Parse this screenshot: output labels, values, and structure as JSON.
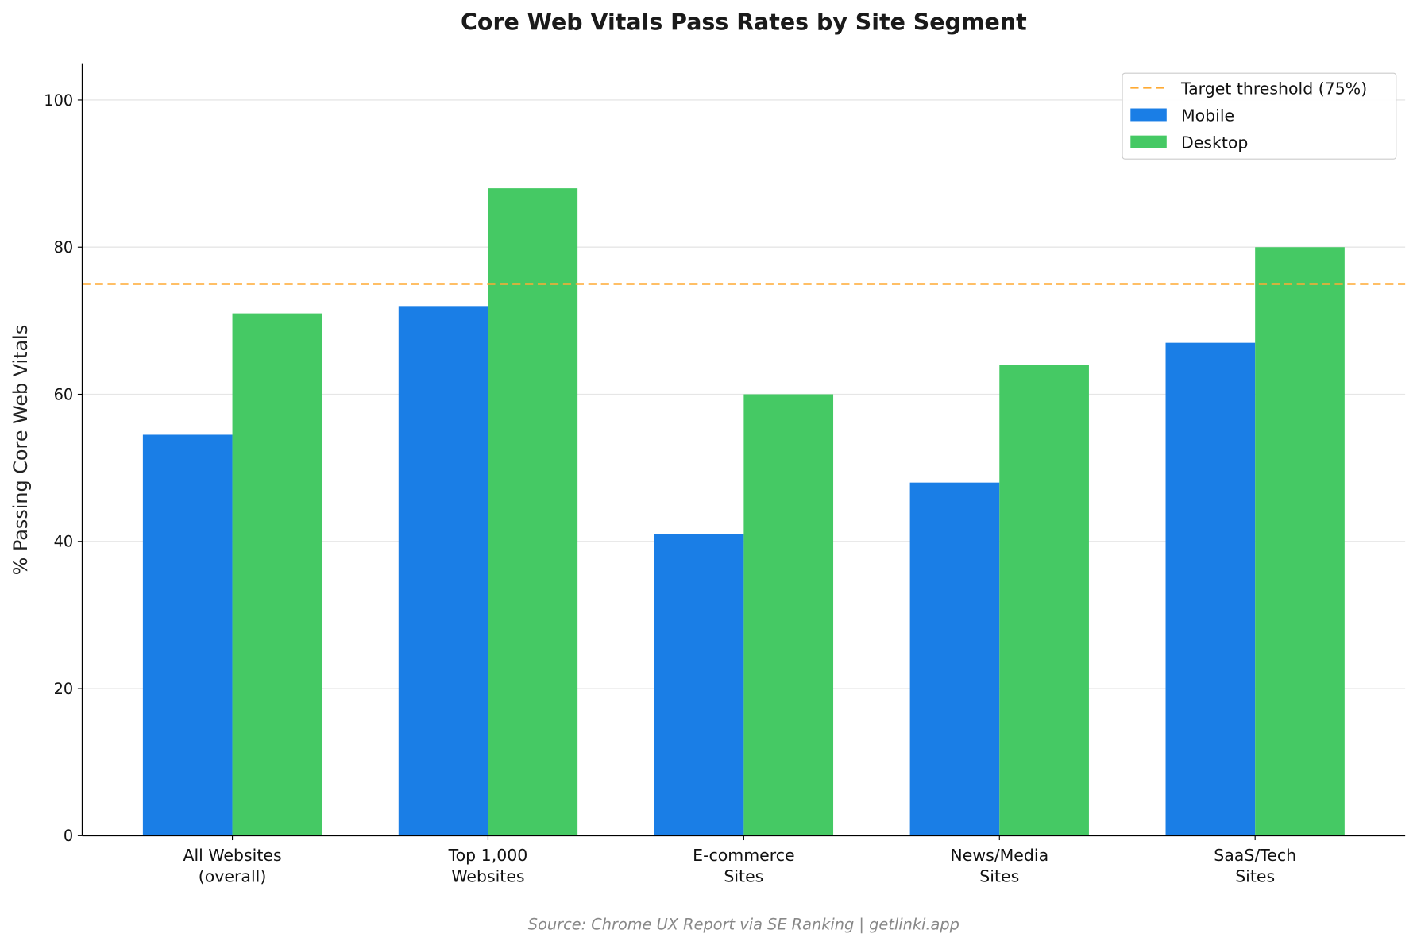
{
  "chart_data": {
    "type": "bar",
    "title": "Core Web Vitals Pass Rates by Site Segment",
    "xlabel": "",
    "ylabel": "% Passing Core Web Vitals",
    "categories": [
      [
        "All Websites",
        "(overall)"
      ],
      [
        "Top 1,000",
        "Websites"
      ],
      [
        "E-commerce",
        "Sites"
      ],
      [
        "News/Media",
        "Sites"
      ],
      [
        "SaaS/Tech",
        "Sites"
      ]
    ],
    "series": [
      {
        "name": "Mobile",
        "color": "#1a7ee6",
        "values": [
          54.5,
          72,
          41,
          48,
          67
        ]
      },
      {
        "name": "Desktop",
        "color": "#45c964",
        "values": [
          71,
          88,
          60,
          64,
          80
        ]
      }
    ],
    "reference_line": {
      "name": "Target threshold (75%)",
      "value": 75,
      "color": "#ffaa33",
      "style": "dashed"
    },
    "ylim": [
      0,
      105
    ],
    "yticks": [
      0,
      20,
      40,
      60,
      80,
      100
    ],
    "grid": "horizontal",
    "legend": "top-right",
    "source": "Source: Chrome UX Report via SE Ranking | getlinki.app"
  }
}
